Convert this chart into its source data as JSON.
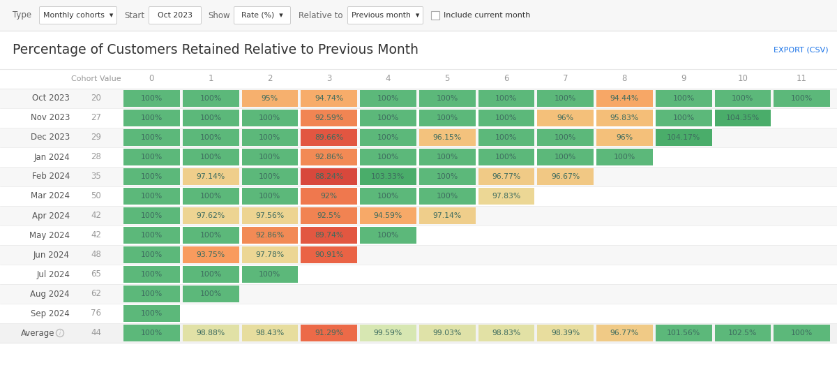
{
  "title": "Percentage of Customers Retained Relative to Previous Month",
  "export_text": "EXPORT (CSV)",
  "row_labels": [
    "Oct 2023",
    "Nov 2023",
    "Dec 2023",
    "Jan 2024",
    "Feb 2024",
    "Mar 2024",
    "Apr 2024",
    "May 2024",
    "Jun 2024",
    "Jul 2024",
    "Aug 2024",
    "Sep 2024",
    "Average"
  ],
  "cohort_values": [
    20,
    27,
    29,
    28,
    35,
    50,
    42,
    42,
    48,
    65,
    62,
    76,
    44
  ],
  "col_headers": [
    "0",
    "1",
    "2",
    "3",
    "4",
    "5",
    "6",
    "7",
    "8",
    "9",
    "10",
    "11"
  ],
  "data": [
    [
      100,
      100,
      95,
      94.74,
      100,
      100,
      100,
      100,
      94.44,
      100,
      100,
      100
    ],
    [
      100,
      100,
      100,
      92.59,
      100,
      100,
      100,
      96,
      95.83,
      100,
      104.35,
      null
    ],
    [
      100,
      100,
      100,
      89.66,
      100,
      96.15,
      100,
      100,
      96,
      104.17,
      null,
      null
    ],
    [
      100,
      100,
      100,
      92.86,
      100,
      100,
      100,
      100,
      100,
      null,
      null,
      null
    ],
    [
      100,
      97.14,
      100,
      88.24,
      103.33,
      100,
      96.77,
      96.67,
      null,
      null,
      null,
      null
    ],
    [
      100,
      100,
      100,
      92,
      100,
      100,
      97.83,
      null,
      null,
      null,
      null,
      null
    ],
    [
      100,
      97.62,
      97.56,
      92.5,
      94.59,
      97.14,
      null,
      null,
      null,
      null,
      null,
      null
    ],
    [
      100,
      100,
      92.86,
      89.74,
      100,
      null,
      null,
      null,
      null,
      null,
      null,
      null
    ],
    [
      100,
      93.75,
      97.78,
      90.91,
      null,
      null,
      null,
      null,
      null,
      null,
      null,
      null
    ],
    [
      100,
      100,
      100,
      null,
      null,
      null,
      null,
      null,
      null,
      null,
      null,
      null
    ],
    [
      100,
      100,
      null,
      null,
      null,
      null,
      null,
      null,
      null,
      null,
      null,
      null
    ],
    [
      100,
      null,
      null,
      null,
      null,
      null,
      null,
      null,
      null,
      null,
      null,
      null
    ],
    [
      100,
      98.88,
      98.43,
      91.29,
      99.59,
      99.03,
      98.83,
      98.39,
      96.77,
      101.56,
      102.5,
      100
    ]
  ],
  "cell_text": [
    [
      "100%",
      "100%",
      "95%",
      "94.74%",
      "100%",
      "100%",
      "100%",
      "100%",
      "94.44%",
      "100%",
      "100%",
      "100%"
    ],
    [
      "100%",
      "100%",
      "100%",
      "92.59%",
      "100%",
      "100%",
      "100%",
      "96%",
      "95.83%",
      "100%",
      "104.35%",
      ""
    ],
    [
      "100%",
      "100%",
      "100%",
      "89.66%",
      "100%",
      "96.15%",
      "100%",
      "100%",
      "96%",
      "104.17%",
      "",
      ""
    ],
    [
      "100%",
      "100%",
      "100%",
      "92.86%",
      "100%",
      "100%",
      "100%",
      "100%",
      "100%",
      "",
      "",
      ""
    ],
    [
      "100%",
      "97.14%",
      "100%",
      "88.24%",
      "103.33%",
      "100%",
      "96.77%",
      "96.67%",
      "",
      "",
      "",
      ""
    ],
    [
      "100%",
      "100%",
      "100%",
      "92%",
      "100%",
      "100%",
      "97.83%",
      "",
      "",
      "",
      "",
      ""
    ],
    [
      "100%",
      "97.62%",
      "97.56%",
      "92.5%",
      "94.59%",
      "97.14%",
      "",
      "",
      "",
      "",
      "",
      ""
    ],
    [
      "100%",
      "100%",
      "92.86%",
      "89.74%",
      "100%",
      "",
      "",
      "",
      "",
      "",
      "",
      ""
    ],
    [
      "100%",
      "93.75%",
      "97.78%",
      "90.91%",
      "",
      "",
      "",
      "",
      "",
      "",
      "",
      ""
    ],
    [
      "100%",
      "100%",
      "100%",
      "",
      "",
      "",
      "",
      "",
      "",
      "",
      "",
      ""
    ],
    [
      "100%",
      "100%",
      "",
      "",
      "",
      "",
      "",
      "",
      "",
      "",
      "",
      ""
    ],
    [
      "100%",
      "",
      "",
      "",
      "",
      "",
      "",
      "",
      "",
      "",
      "",
      ""
    ],
    [
      "100%",
      "98.88%",
      "98.43%",
      "91.29%",
      "99.59%",
      "99.03%",
      "98.83%",
      "98.39%",
      "96.77%",
      "101.56%",
      "102.5%",
      "100%"
    ]
  ],
  "bg_color": "#ffffff",
  "cell_text_color": "#3d6b5e",
  "header_text_color": "#999999",
  "row_label_color": "#555555",
  "cohort_val_color": "#999999",
  "title_color": "#333333",
  "export_color": "#1a73e8",
  "toolbar_bg": "#f7f7f7",
  "avg_row_bg": "#f2f2f2",
  "separator_color": "#e8e8e8"
}
